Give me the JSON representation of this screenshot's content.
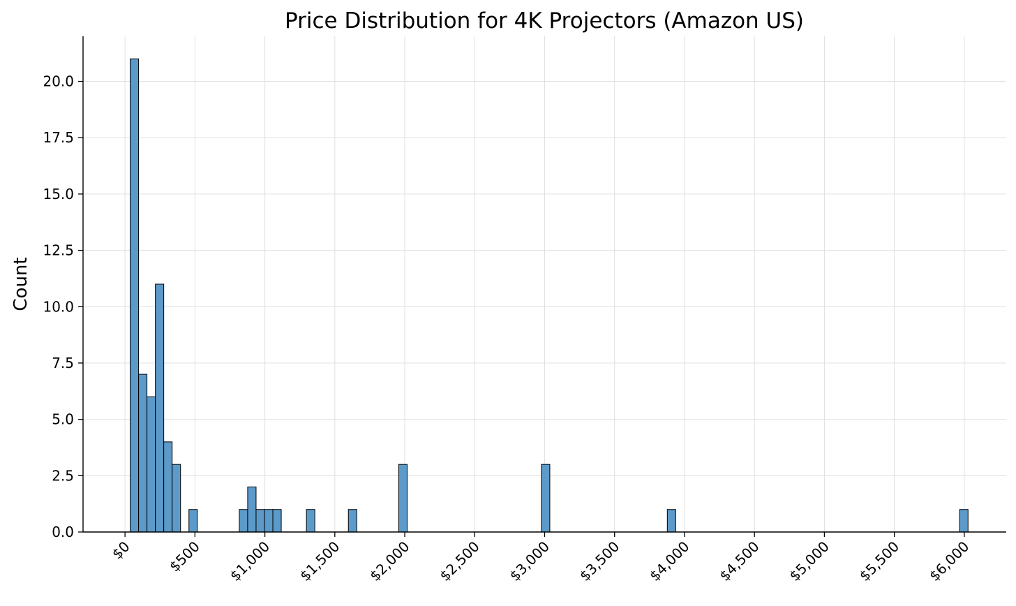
{
  "chart_data": {
    "type": "bar",
    "title": "Price Distribution for 4K Projectors (Amazon US)",
    "xlabel": "",
    "ylabel": "Count",
    "bar_color": "#5b9ac9",
    "bin_width": 60,
    "xlim": [
      -300,
      6300
    ],
    "ylim": [
      0,
      22
    ],
    "grid": true,
    "x_ticks": [
      {
        "value": 0,
        "label": "$0"
      },
      {
        "value": 500,
        "label": "$500"
      },
      {
        "value": 1000,
        "label": "$1,000"
      },
      {
        "value": 1500,
        "label": "$1,500"
      },
      {
        "value": 2000,
        "label": "$2,000"
      },
      {
        "value": 2500,
        "label": "$2,500"
      },
      {
        "value": 3000,
        "label": "$3,000"
      },
      {
        "value": 3500,
        "label": "$3,500"
      },
      {
        "value": 4000,
        "label": "$4,000"
      },
      {
        "value": 4500,
        "label": "$4,500"
      },
      {
        "value": 5000,
        "label": "$5,000"
      },
      {
        "value": 5500,
        "label": "$5,500"
      },
      {
        "value": 6000,
        "label": "$6,000"
      }
    ],
    "y_ticks": [
      {
        "value": 0,
        "label": "0.0"
      },
      {
        "value": 2.5,
        "label": "2.5"
      },
      {
        "value": 5,
        "label": "5.0"
      },
      {
        "value": 7.5,
        "label": "7.5"
      },
      {
        "value": 10,
        "label": "10.0"
      },
      {
        "value": 12.5,
        "label": "12.5"
      },
      {
        "value": 15,
        "label": "15.0"
      },
      {
        "value": 17.5,
        "label": "17.5"
      },
      {
        "value": 20,
        "label": "20.0"
      }
    ],
    "bins": [
      {
        "start": 37,
        "count": 21
      },
      {
        "start": 97,
        "count": 7
      },
      {
        "start": 157,
        "count": 6
      },
      {
        "start": 217,
        "count": 11
      },
      {
        "start": 277,
        "count": 4
      },
      {
        "start": 337,
        "count": 3
      },
      {
        "start": 457,
        "count": 1
      },
      {
        "start": 817,
        "count": 1
      },
      {
        "start": 877,
        "count": 2
      },
      {
        "start": 937,
        "count": 1
      },
      {
        "start": 997,
        "count": 1
      },
      {
        "start": 1057,
        "count": 1
      },
      {
        "start": 1297,
        "count": 1
      },
      {
        "start": 1597,
        "count": 1
      },
      {
        "start": 1957,
        "count": 3
      },
      {
        "start": 2977,
        "count": 3
      },
      {
        "start": 3877,
        "count": 1
      },
      {
        "start": 5967,
        "count": 1
      }
    ]
  }
}
